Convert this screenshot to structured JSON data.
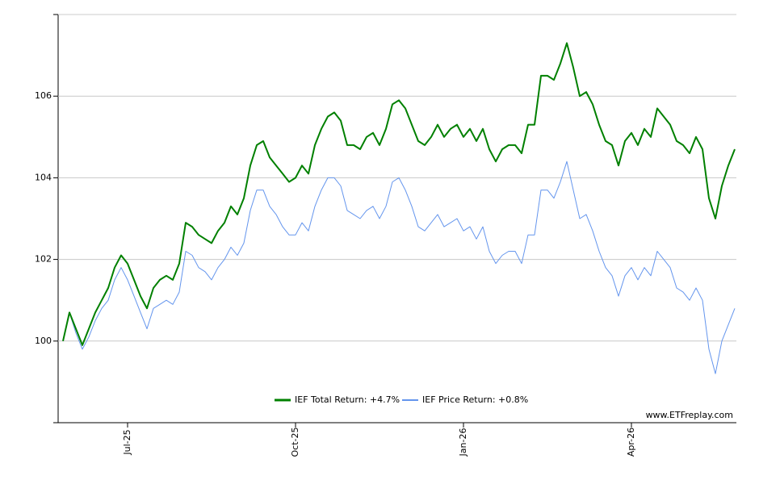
{
  "chart_data": {
    "type": "line",
    "categories": [
      null,
      null,
      null,
      null,
      null,
      null,
      null,
      null,
      null,
      null,
      "Jul-25",
      null,
      null,
      null,
      null,
      null,
      null,
      null,
      null,
      null,
      null,
      null,
      null,
      null,
      null,
      null,
      null,
      null,
      null,
      null,
      null,
      null,
      null,
      null,
      null,
      null,
      "Oct-25",
      null,
      null,
      null,
      null,
      null,
      null,
      null,
      null,
      null,
      null,
      null,
      null,
      null,
      null,
      null,
      null,
      null,
      null,
      null,
      null,
      null,
      null,
      null,
      null,
      null,
      "Jan-26",
      null,
      null,
      null,
      null,
      null,
      null,
      null,
      null,
      null,
      null,
      null,
      null,
      null,
      null,
      null,
      null,
      null,
      null,
      null,
      null,
      null,
      null,
      null,
      null,
      null,
      "Apr-26",
      null,
      null,
      null,
      null,
      null,
      null,
      null,
      null,
      null,
      null,
      null,
      null,
      null,
      null,
      null,
      null
    ],
    "series": [
      {
        "name": "IEF Total Return: +4.7%",
        "color": "#008000",
        "width": 2,
        "values": [
          100.0,
          100.7,
          100.3,
          99.9,
          100.3,
          100.7,
          101.0,
          101.3,
          101.8,
          102.1,
          101.9,
          101.5,
          101.1,
          100.8,
          101.3,
          101.5,
          101.6,
          101.5,
          101.9,
          102.9,
          102.8,
          102.6,
          102.5,
          102.4,
          102.7,
          102.9,
          103.3,
          103.1,
          103.5,
          104.3,
          104.8,
          104.9,
          104.5,
          104.3,
          104.1,
          103.9,
          104.0,
          104.3,
          104.1,
          104.8,
          105.2,
          105.5,
          105.6,
          105.4,
          104.8,
          104.8,
          104.7,
          105.0,
          105.1,
          104.8,
          105.2,
          105.8,
          105.9,
          105.7,
          105.3,
          104.9,
          104.8,
          105.0,
          105.3,
          105.0,
          105.2,
          105.3,
          105.0,
          105.2,
          104.9,
          105.2,
          104.7,
          104.4,
          104.7,
          104.8,
          104.8,
          104.6,
          105.3,
          105.3,
          106.5,
          106.5,
          106.4,
          106.8,
          107.3,
          106.7,
          106.0,
          106.1,
          105.8,
          105.3,
          104.9,
          104.8,
          104.3,
          104.9,
          105.1,
          104.8,
          105.2,
          105.0,
          105.7,
          105.5,
          105.3,
          104.9,
          104.8,
          104.6,
          105.0,
          104.7,
          103.5,
          103.0,
          103.8,
          104.3,
          104.7
        ]
      },
      {
        "name": "IEF Price Return: +0.8%",
        "color": "#6495ed",
        "width": 1,
        "values": [
          100.0,
          100.7,
          100.2,
          99.8,
          100.1,
          100.5,
          100.8,
          101.0,
          101.5,
          101.8,
          101.5,
          101.1,
          100.7,
          100.3,
          100.8,
          100.9,
          101.0,
          100.9,
          101.2,
          102.2,
          102.1,
          101.8,
          101.7,
          101.5,
          101.8,
          102.0,
          102.3,
          102.1,
          102.4,
          103.2,
          103.7,
          103.7,
          103.3,
          103.1,
          102.8,
          102.6,
          102.6,
          102.9,
          102.7,
          103.3,
          103.7,
          104.0,
          104.0,
          103.8,
          103.2,
          103.1,
          103.0,
          103.2,
          103.3,
          103.0,
          103.3,
          103.9,
          104.0,
          103.7,
          103.3,
          102.8,
          102.7,
          102.9,
          103.1,
          102.8,
          102.9,
          103.0,
          102.7,
          102.8,
          102.5,
          102.8,
          102.2,
          101.9,
          102.1,
          102.2,
          102.2,
          101.9,
          102.6,
          102.6,
          103.7,
          103.7,
          103.5,
          103.9,
          104.4,
          103.7,
          103.0,
          103.1,
          102.7,
          102.2,
          101.8,
          101.6,
          101.1,
          101.6,
          101.8,
          101.5,
          101.8,
          101.6,
          102.2,
          102.0,
          101.8,
          101.3,
          101.2,
          101.0,
          101.3,
          101.0,
          99.8,
          99.2,
          100.0,
          100.4,
          100.8
        ]
      }
    ],
    "ylim": [
      98,
      108
    ],
    "yticks": [
      100,
      102,
      104,
      106
    ],
    "grid": true,
    "legend": "bottom",
    "watermark": "www.ETFreplay.com"
  }
}
